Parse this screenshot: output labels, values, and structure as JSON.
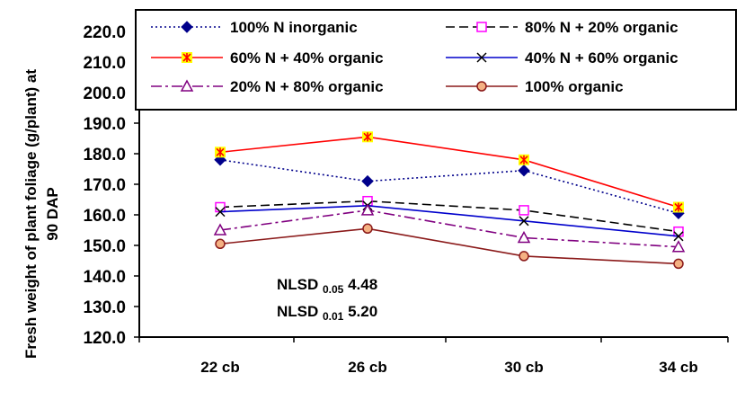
{
  "chart_data": {
    "type": "line",
    "title": "",
    "xlabel": "",
    "ylabel_lines": [
      "Fresh weight of plant foliage (g/plant) at",
      "90 DAP"
    ],
    "categories": [
      "22 cb",
      "26 cb",
      "30 cb",
      "34 cb"
    ],
    "ylim": [
      120,
      220
    ],
    "yticks": [
      "120.0",
      "130.0",
      "140.0",
      "150.0",
      "160.0",
      "170.0",
      "180.0",
      "190.0",
      "200.0",
      "210.0",
      "220.0"
    ],
    "grid": false,
    "legend": "top",
    "series": [
      {
        "name": "100% N inorganic",
        "values": [
          178,
          171,
          174.5,
          160.5
        ],
        "color": "#00008B",
        "dash": "2,3",
        "marker": "diamond"
      },
      {
        "name": "80% N + 20% organic",
        "values": [
          162.5,
          164.5,
          161.5,
          154.5
        ],
        "color": "#000000",
        "dash": "10,5",
        "marker": "square-open",
        "markerColor": "#FF00FF"
      },
      {
        "name": "60% N + 40% organic",
        "values": [
          180.5,
          185.5,
          178,
          162.5
        ],
        "color": "#FF0000",
        "dash": "",
        "marker": "star-box",
        "markerColor": "#FFFF00"
      },
      {
        "name": "40% N + 60% organic",
        "values": [
          161,
          163,
          158,
          153
        ],
        "color": "#0000CC",
        "dash": "",
        "marker": "x"
      },
      {
        "name": "20% N + 80% organic",
        "values": [
          155,
          161.5,
          152.5,
          149.5
        ],
        "color": "#800080",
        "dash": "12,4,3,4",
        "marker": "triangle-open"
      },
      {
        "name": "100% organic",
        "values": [
          150.5,
          155.5,
          146.5,
          144
        ],
        "color": "#8B1A1A",
        "dash": "",
        "marker": "circle",
        "markerColor": "#F4B183"
      }
    ],
    "annotations": [
      {
        "prefix": "NLSD",
        "subscript": "0.05",
        "value": "4.48"
      },
      {
        "prefix": "NLSD",
        "subscript": "0.01",
        "value": "5.20"
      }
    ]
  }
}
